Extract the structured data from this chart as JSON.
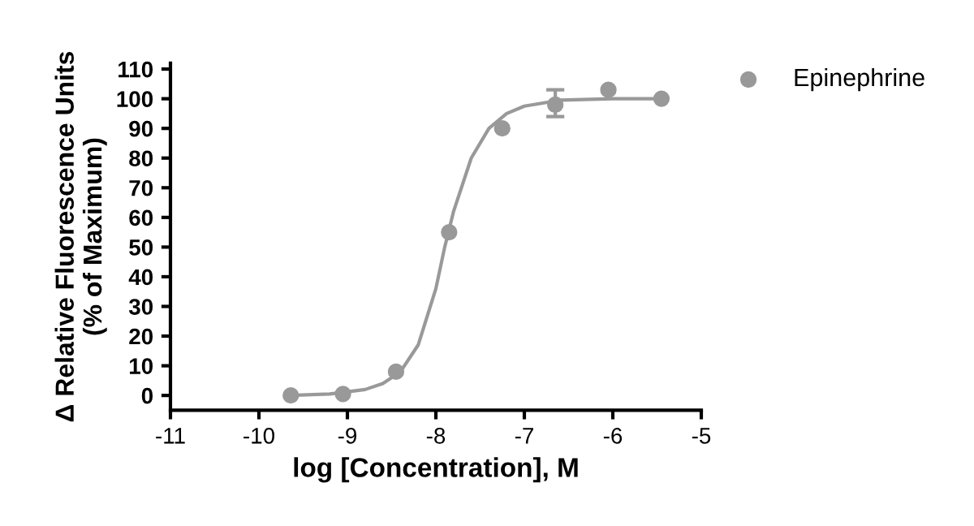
{
  "chart_data": {
    "type": "scatter",
    "xlabel": "log [Concentration], M",
    "ylabel": "Δ Relative Fluorescence Units\n(% of Maximum)",
    "xlim": [
      -11,
      -5
    ],
    "xticks": [
      -11,
      -10,
      -9,
      -8,
      -7,
      -6,
      -5
    ],
    "ylim": [
      -5,
      112
    ],
    "yticks": [
      0,
      10,
      20,
      30,
      40,
      50,
      60,
      70,
      80,
      90,
      100,
      110
    ],
    "legend": "top right",
    "grid": false,
    "marker": "circle",
    "series": [
      {
        "name": "Epinephrine",
        "color": "#999999",
        "x": [
          -9.64,
          -9.05,
          -8.45,
          -7.85,
          -7.25,
          -6.65,
          -6.05,
          -5.45
        ],
        "values": [
          0,
          0.5,
          8,
          55,
          90,
          98,
          103,
          100
        ],
        "errors": [
          null,
          null,
          null,
          null,
          null,
          [
            94,
            103
          ],
          null,
          null
        ]
      },
      {
        "type": "line",
        "color": "#999999",
        "marker": "none",
        "x": [
          -9.64,
          -9.2,
          -8.8,
          -8.6,
          -8.4,
          -8.2,
          -8.0,
          -7.9,
          -7.8,
          -7.6,
          -7.4,
          -7.2,
          -7.0,
          -6.6,
          -6.0,
          -5.45
        ],
        "values": [
          0,
          0.5,
          2,
          4,
          8,
          17,
          36,
          50,
          62,
          80,
          90,
          95,
          97.5,
          99.5,
          100,
          100
        ]
      }
    ]
  }
}
